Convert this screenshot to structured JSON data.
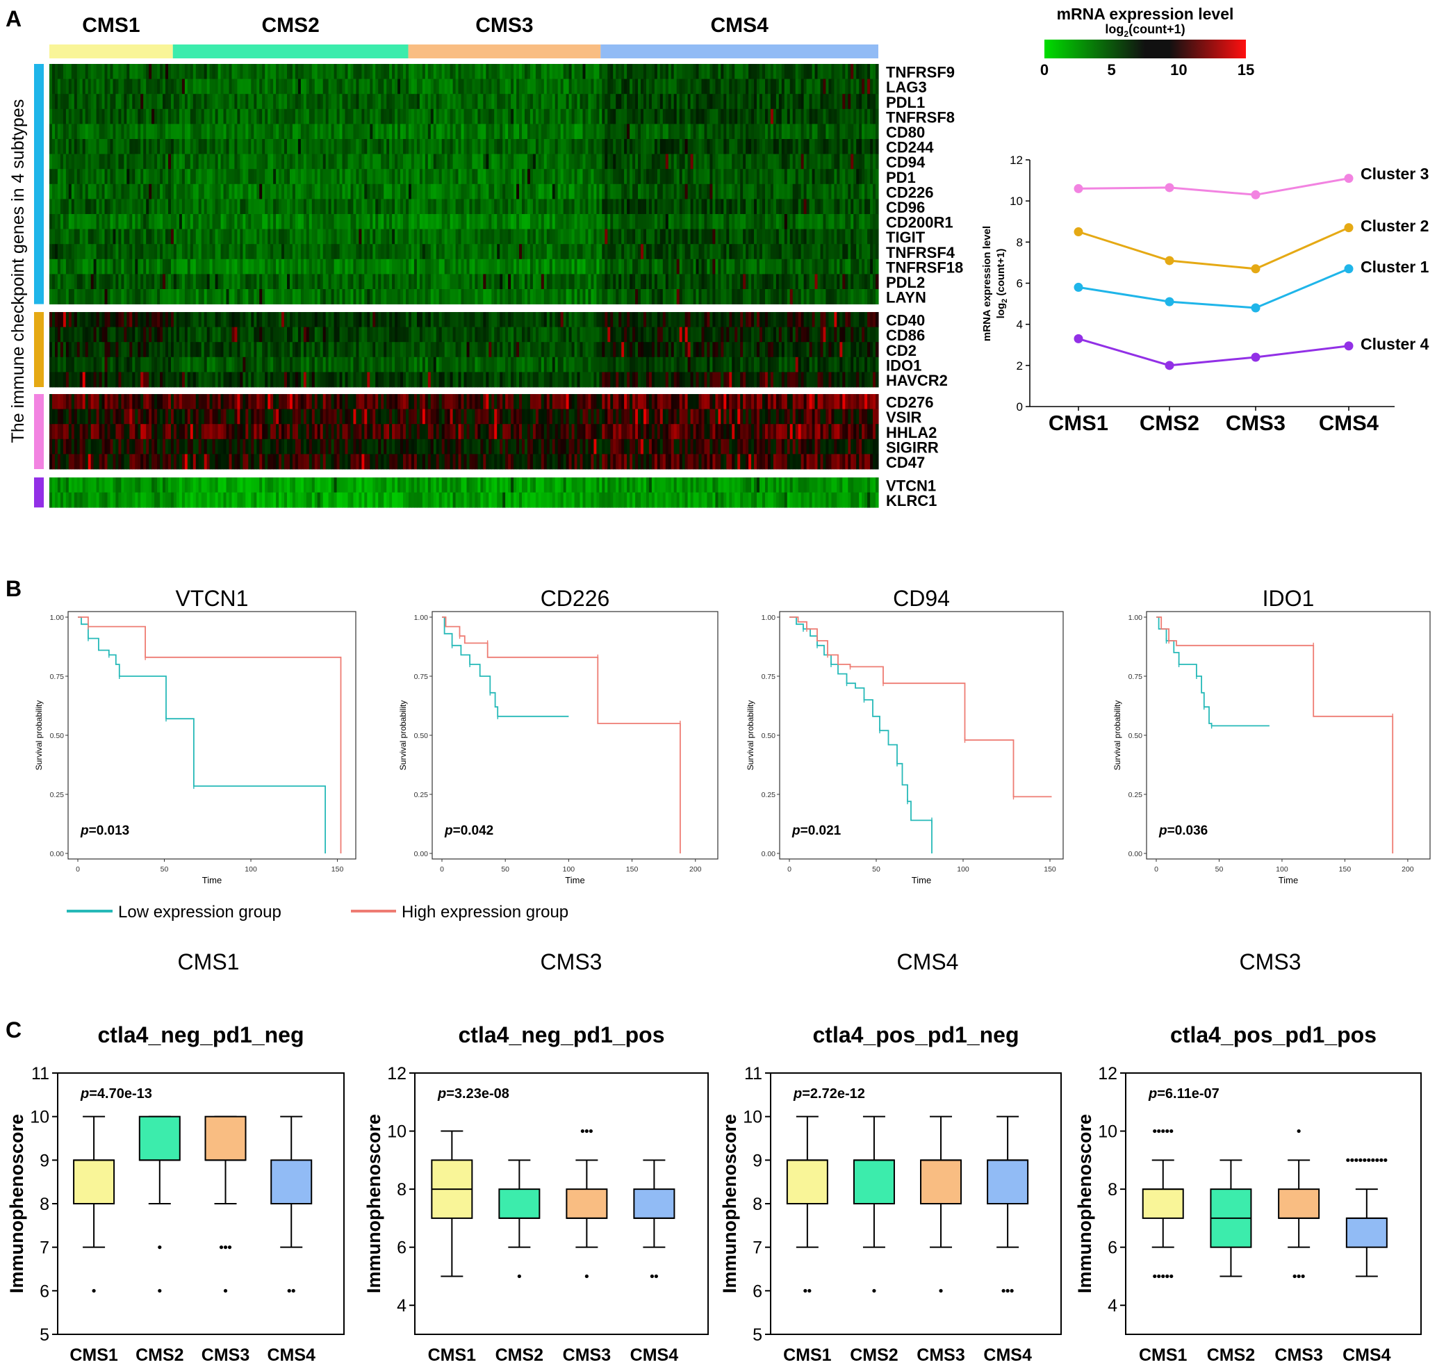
{
  "panel_labels": {
    "a": "A",
    "b": "B",
    "c": "C"
  },
  "colors": {
    "cms1": "#f9f598",
    "cms2": "#3cecac",
    "cms3": "#f9bd82",
    "cms4": "#91bbf5",
    "cluster1": "#1fb5e9",
    "cluster2": "#e5a914",
    "cluster3": "#f283e1",
    "cluster4": "#9230e6",
    "km_low": "#26b9b8",
    "km_high": "#ee7c73"
  },
  "chart_data": [
    {
      "type": "heatmap",
      "id": "A-heatmap",
      "subtypes": [
        "CMS1",
        "CMS2",
        "CMS3",
        "CMS4"
      ],
      "subtype_sample_share": [
        0.149,
        0.284,
        0.232,
        0.335
      ],
      "y_axis_label": "The immune checkpoint genes in 4 subtypes",
      "legend": {
        "title": "mRNA expression level",
        "subtitle_main": "log",
        "subtitle_sub": "2",
        "subtitle_tail": "(count+1)",
        "ticks": [
          0,
          5,
          10,
          15
        ],
        "colors": [
          "#00dd00",
          "#000000",
          "#ff0000"
        ]
      },
      "gene_groups": [
        {
          "cluster": "Cluster 1",
          "genes": [
            "TNFRSF9",
            "LAG3",
            "PDL1",
            "TNFRSF8",
            "CD80",
            "CD244",
            "CD94",
            "PD1",
            "CD226",
            "CD96",
            "CD200R1",
            "TIGIT",
            "TNFRSF4",
            "TNFRSF18",
            "PDL2",
            "LAYN"
          ]
        },
        {
          "cluster": "Cluster 2",
          "genes": [
            "CD40",
            "CD86",
            "CD2",
            "IDO1",
            "HAVCR2"
          ]
        },
        {
          "cluster": "Cluster 3",
          "genes": [
            "CD276",
            "VSIR",
            "HHLA2",
            "SIGIRR",
            "CD47"
          ]
        },
        {
          "cluster": "Cluster 4",
          "genes": [
            "VTCN1",
            "KLRC1"
          ]
        }
      ],
      "group_mean_expression": {
        "Cluster 1": [
          5.8,
          5.1,
          4.8,
          6.7
        ],
        "Cluster 2": [
          8.5,
          7.1,
          6.7,
          8.7
        ],
        "Cluster 3": [
          10.6,
          10.6,
          10.3,
          11.1
        ],
        "Cluster 4": [
          3.3,
          2.0,
          2.4,
          2.9
        ]
      }
    },
    {
      "type": "line",
      "id": "A-line",
      "categories": [
        "CMS1",
        "CMS2",
        "CMS3",
        "CMS4"
      ],
      "ylabel_line1": "mRNA expression level",
      "ylabel_line2_main": "log",
      "ylabel_line2_sub": "2",
      "ylabel_line2_tail": " (count+1)",
      "ylim": [
        0,
        12
      ],
      "yticks": [
        "0",
        "2",
        "4",
        "6",
        "8",
        "10",
        "12"
      ],
      "series": [
        {
          "name": "Cluster 3",
          "values": [
            10.6,
            10.65,
            10.3,
            11.1
          ]
        },
        {
          "name": "Cluster 2",
          "values": [
            8.5,
            7.1,
            6.7,
            8.7
          ]
        },
        {
          "name": "Cluster 1",
          "values": [
            5.8,
            5.1,
            4.8,
            6.7
          ]
        },
        {
          "name": "Cluster 4",
          "values": [
            3.3,
            2.0,
            2.4,
            2.95
          ]
        }
      ]
    },
    {
      "type": "line",
      "id": "B-km",
      "xlabel": "Time",
      "ylabel": "Survival probability",
      "yticks": [
        "0.00",
        "0.25",
        "0.50",
        "0.75",
        "1.00"
      ],
      "legend": {
        "low": "Low expression group",
        "high": "High expression group"
      },
      "plots": [
        {
          "gene": "VTCN1",
          "subtype": "CMS1",
          "p_prefix": "p",
          "p_value": "=0.013",
          "xmax": 155,
          "xticks": [
            "0",
            "50",
            "100",
            "150"
          ],
          "low": [
            [
              0,
              1
            ],
            [
              2,
              0.97
            ],
            [
              6,
              0.91
            ],
            [
              12,
              0.86
            ],
            [
              18,
              0.84
            ],
            [
              22,
              0.8
            ],
            [
              24,
              0.75
            ],
            [
              50,
              0.75
            ],
            [
              51,
              0.57
            ],
            [
              67,
              0.57
            ],
            [
              67,
              0.285
            ],
            [
              143,
              0.285
            ],
            [
              143,
              0.0
            ]
          ],
          "high": [
            [
              0,
              1
            ],
            [
              6,
              1
            ],
            [
              6,
              0.96
            ],
            [
              39,
              0.96
            ],
            [
              39,
              0.83
            ],
            [
              152,
              0.83
            ],
            [
              152,
              0.0
            ]
          ]
        },
        {
          "gene": "CD226",
          "subtype": "CMS3",
          "p_prefix": "p",
          "p_value": "=0.042",
          "xmax": 210,
          "xticks": [
            "0",
            "50",
            "100",
            "150",
            "200"
          ],
          "low": [
            [
              0,
              1
            ],
            [
              2,
              0.93
            ],
            [
              8,
              0.88
            ],
            [
              15,
              0.84
            ],
            [
              22,
              0.8
            ],
            [
              30,
              0.75
            ],
            [
              38,
              0.68
            ],
            [
              42,
              0.62
            ],
            [
              44,
              0.58
            ],
            [
              100,
              0.58
            ]
          ],
          "high": [
            [
              0,
              1
            ],
            [
              3,
              0.96
            ],
            [
              14,
              0.92
            ],
            [
              18,
              0.89
            ],
            [
              36,
              0.89
            ],
            [
              36,
              0.83
            ],
            [
              123,
              0.83
            ],
            [
              123,
              0.55
            ],
            [
              188,
              0.55
            ],
            [
              188,
              0.0
            ]
          ]
        },
        {
          "gene": "CD94",
          "subtype": "CMS4",
          "p_prefix": "p",
          "p_value": "=0.021",
          "xmax": 152,
          "xticks": [
            "0",
            "50",
            "100",
            "150"
          ],
          "low": [
            [
              0,
              1
            ],
            [
              4,
              0.97
            ],
            [
              8,
              0.95
            ],
            [
              12,
              0.92
            ],
            [
              16,
              0.88
            ],
            [
              20,
              0.84
            ],
            [
              24,
              0.8
            ],
            [
              28,
              0.76
            ],
            [
              33,
              0.72
            ],
            [
              38,
              0.7
            ],
            [
              43,
              0.65
            ],
            [
              48,
              0.58
            ],
            [
              52,
              0.52
            ],
            [
              57,
              0.46
            ],
            [
              62,
              0.38
            ],
            [
              65,
              0.29
            ],
            [
              68,
              0.22
            ],
            [
              70,
              0.14
            ],
            [
              82,
              0.14
            ],
            [
              82,
              0.0
            ]
          ],
          "high": [
            [
              0,
              1
            ],
            [
              5,
              0.98
            ],
            [
              10,
              0.95
            ],
            [
              16,
              0.9
            ],
            [
              22,
              0.84
            ],
            [
              28,
              0.8
            ],
            [
              35,
              0.79
            ],
            [
              54,
              0.79
            ],
            [
              54,
              0.72
            ],
            [
              101,
              0.72
            ],
            [
              101,
              0.48
            ],
            [
              129,
              0.48
            ],
            [
              129,
              0.24
            ],
            [
              151,
              0.24
            ]
          ]
        },
        {
          "gene": "IDO1",
          "subtype": "CMS3",
          "p_prefix": "p",
          "p_value": "=0.036",
          "xmax": 210,
          "xticks": [
            "0",
            "50",
            "100",
            "150",
            "200"
          ],
          "low": [
            [
              0,
              1
            ],
            [
              2,
              0.95
            ],
            [
              8,
              0.9
            ],
            [
              14,
              0.85
            ],
            [
              18,
              0.8
            ],
            [
              30,
              0.8
            ],
            [
              32,
              0.75
            ],
            [
              36,
              0.68
            ],
            [
              38,
              0.62
            ],
            [
              42,
              0.55
            ],
            [
              44,
              0.54
            ],
            [
              90,
              0.54
            ]
          ],
          "high": [
            [
              0,
              1
            ],
            [
              4,
              0.95
            ],
            [
              10,
              0.9
            ],
            [
              16,
              0.88
            ],
            [
              125,
              0.88
            ],
            [
              125,
              0.58
            ],
            [
              188,
              0.58
            ],
            [
              188,
              0.0
            ]
          ]
        }
      ]
    },
    {
      "type": "bar",
      "id": "C-box",
      "ylabel": "Immunophenoscore",
      "categories": [
        "CMS1",
        "CMS2",
        "CMS3",
        "CMS4"
      ],
      "plots": [
        {
          "title": "ctla4_neg_pd1_neg",
          "p_prefix": "p",
          "p_value": "=4.70e-13",
          "ylim": [
            5,
            11
          ],
          "yticks": [
            "5",
            "6",
            "7",
            "8",
            "9",
            "10",
            "11"
          ],
          "boxes": [
            {
              "min": 7,
              "q1": 8,
              "median": 9,
              "q3": 9,
              "max": 10,
              "outliers": [
                6
              ]
            },
            {
              "min": 8,
              "q1": 9,
              "median": 9,
              "q3": 10,
              "max": 10,
              "outliers": [
                7,
                6
              ]
            },
            {
              "min": 8,
              "q1": 9,
              "median": 9,
              "q3": 10,
              "max": 10,
              "outliers": [
                7,
                7,
                7,
                6
              ]
            },
            {
              "min": 7,
              "q1": 8,
              "median": 8,
              "q3": 9,
              "max": 10,
              "outliers": [
                6,
                6
              ]
            }
          ]
        },
        {
          "title": "ctla4_neg_pd1_pos",
          "p_prefix": "p",
          "p_value": "=3.23e-08",
          "ylim": [
            3,
            12
          ],
          "yticks": [
            "4",
            "6",
            "8",
            "10",
            "12"
          ],
          "boxes": [
            {
              "min": 5,
              "q1": 7,
              "median": 8,
              "q3": 9,
              "max": 10,
              "outliers": []
            },
            {
              "min": 6,
              "q1": 7,
              "median": 7,
              "q3": 8,
              "max": 9,
              "outliers": [
                5
              ]
            },
            {
              "min": 6,
              "q1": 7,
              "median": 7,
              "q3": 8,
              "max": 9,
              "outliers": [
                10,
                10,
                10,
                5
              ]
            },
            {
              "min": 6,
              "q1": 7,
              "median": 7,
              "q3": 8,
              "max": 9,
              "outliers": [
                5,
                5
              ]
            }
          ]
        },
        {
          "title": "ctla4_pos_pd1_neg",
          "p_prefix": "p",
          "p_value": "=2.72e-12",
          "ylim": [
            5,
            11
          ],
          "yticks": [
            "5",
            "6",
            "7",
            "8",
            "9",
            "10",
            "11"
          ],
          "boxes": [
            {
              "min": 7,
              "q1": 8,
              "median": 9,
              "q3": 9,
              "max": 10,
              "outliers": [
                6,
                6
              ]
            },
            {
              "min": 7,
              "q1": 8,
              "median": 9,
              "q3": 9,
              "max": 10,
              "outliers": [
                6
              ]
            },
            {
              "min": 7,
              "q1": 8,
              "median": 9,
              "q3": 9,
              "max": 10,
              "outliers": [
                6
              ]
            },
            {
              "min": 7,
              "q1": 8,
              "median": 9,
              "q3": 9,
              "max": 10,
              "outliers": [
                6,
                6,
                6
              ]
            }
          ]
        },
        {
          "title": "ctla4_pos_pd1_pos",
          "p_prefix": "p",
          "p_value": "=6.11e-07",
          "ylim": [
            3,
            12
          ],
          "yticks": [
            "4",
            "6",
            "8",
            "10",
            "12"
          ],
          "boxes": [
            {
              "min": 6,
              "q1": 7,
              "median": 8,
              "q3": 8,
              "max": 9,
              "outliers": [
                10,
                10,
                10,
                10,
                10,
                5,
                5,
                5,
                5,
                5
              ]
            },
            {
              "min": 5,
              "q1": 6,
              "median": 7,
              "q3": 8,
              "max": 9,
              "outliers": []
            },
            {
              "min": 6,
              "q1": 7,
              "median": 7,
              "q3": 8,
              "max": 9,
              "outliers": [
                10,
                5,
                5,
                5
              ]
            },
            {
              "min": 5,
              "q1": 6,
              "median": 7,
              "q3": 7,
              "max": 8,
              "outliers": [
                9,
                9,
                9,
                9,
                9,
                9,
                9,
                9,
                9,
                9
              ]
            }
          ]
        }
      ]
    }
  ]
}
